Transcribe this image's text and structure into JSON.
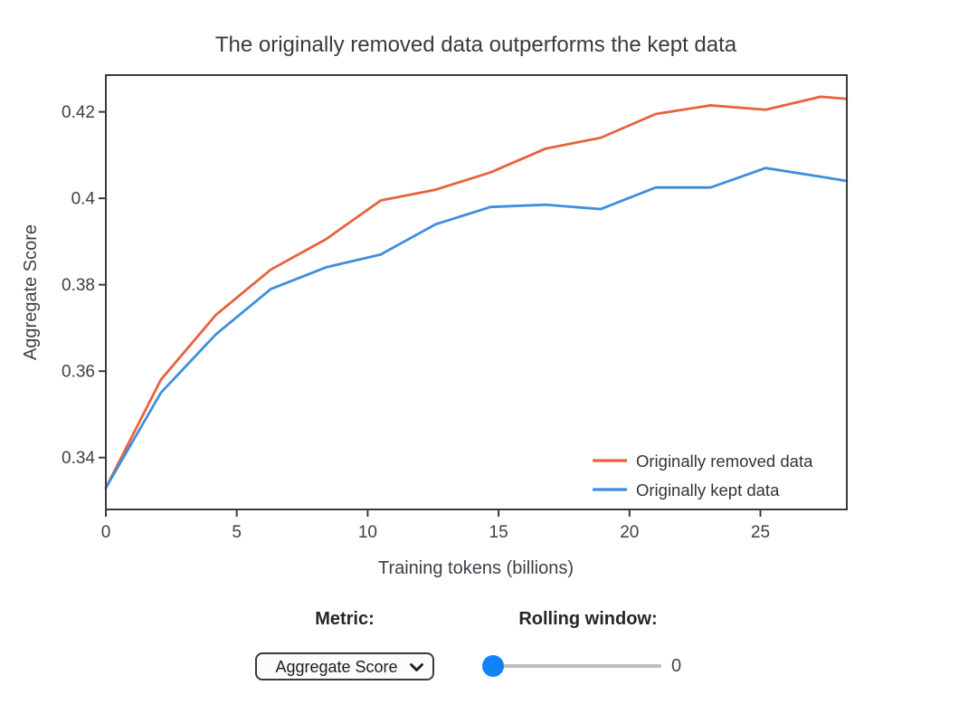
{
  "chart_data": {
    "type": "line",
    "title": "The originally removed data outperforms the kept data",
    "xlabel": "Training tokens (billions)",
    "ylabel": "Aggregate Score",
    "xlim": [
      0,
      28.3
    ],
    "ylim": [
      0.328,
      0.4285
    ],
    "x_ticks": [
      0,
      5,
      10,
      15,
      20,
      25
    ],
    "x_tick_labels": [
      "0",
      "5",
      "10",
      "15",
      "20",
      "25"
    ],
    "y_ticks": [
      0.34,
      0.36,
      0.38,
      0.4,
      0.42
    ],
    "y_tick_labels": [
      "0.34",
      "0.36",
      "0.38",
      "0.4",
      "0.42"
    ],
    "grid": false,
    "legend_position": "lower right",
    "x": [
      0,
      2.1,
      4.2,
      6.3,
      8.4,
      10.5,
      12.6,
      14.7,
      16.8,
      18.9,
      21.0,
      23.1,
      25.2,
      27.3,
      28.3
    ],
    "series": [
      {
        "name": "Originally removed data",
        "color": "#E7623E",
        "values": [
          0.333,
          0.358,
          0.373,
          0.3835,
          0.3905,
          0.3995,
          0.402,
          0.406,
          0.4115,
          0.414,
          0.4195,
          0.4215,
          0.4205,
          0.4235,
          0.423
        ]
      },
      {
        "name": "Originally kept data",
        "color": "#3E8EDE",
        "values": [
          0.333,
          0.355,
          0.3685,
          0.379,
          0.384,
          0.387,
          0.394,
          0.398,
          0.3985,
          0.3975,
          0.4025,
          0.4025,
          0.407,
          0.405,
          0.404
        ]
      }
    ]
  },
  "controls": {
    "metric": {
      "label": "Metric:",
      "value": "Aggregate Score"
    },
    "rolling_window": {
      "label": "Rolling window:",
      "value": "0"
    }
  },
  "colors": {
    "axis": "#3A3A3A",
    "text": "#3C4046",
    "slider_thumb": "#1283F7",
    "slider_track": "#BDBDBD"
  }
}
